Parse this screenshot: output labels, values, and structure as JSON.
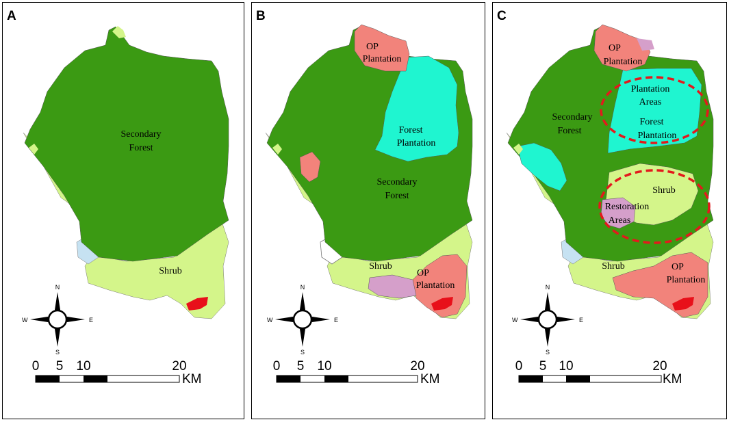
{
  "colors": {
    "secondary_forest": "#3b9a13",
    "shrub": "#d4f58a",
    "forest_plantation": "#1ff5d0",
    "op_plantation": "#f2837b",
    "restoration": "#d59fca",
    "water": "#c6e2f2",
    "red_patch": "#e8101a",
    "highlight_ellipse": "#e3191c"
  },
  "panels": [
    {
      "letter": "A",
      "labels": {
        "secondary_forest": [
          "Secondary",
          "Forest"
        ],
        "shrub": "Shrub"
      }
    },
    {
      "letter": "B",
      "labels": {
        "op_plantation_north": [
          "OP",
          "Plantation"
        ],
        "forest_plantation": [
          "Forest",
          "Plantation"
        ],
        "secondary_forest": [
          "Secondary",
          "Forest"
        ],
        "shrub": "Shrub",
        "op_plantation_south": [
          "OP",
          "Plantation"
        ]
      }
    },
    {
      "letter": "C",
      "labels": {
        "op_plantation_north": [
          "OP",
          "Plantation"
        ],
        "plantation_areas": [
          "Plantation",
          "Areas"
        ],
        "forest_plantation": [
          "Forest",
          "Plantation"
        ],
        "secondary_forest": [
          "Secondary",
          "Forest"
        ],
        "shrub_center": "Shrub",
        "restoration_areas": [
          "Restoration",
          "Areas"
        ],
        "shrub": "Shrub",
        "op_plantation_south": [
          "OP",
          "Plantation"
        ]
      }
    }
  ],
  "compass": {
    "n": "N",
    "s": "S",
    "e": "E",
    "w": "W"
  },
  "scale_bar": {
    "ticks": [
      "0",
      "5",
      "10",
      "20"
    ],
    "unit": "KM"
  }
}
